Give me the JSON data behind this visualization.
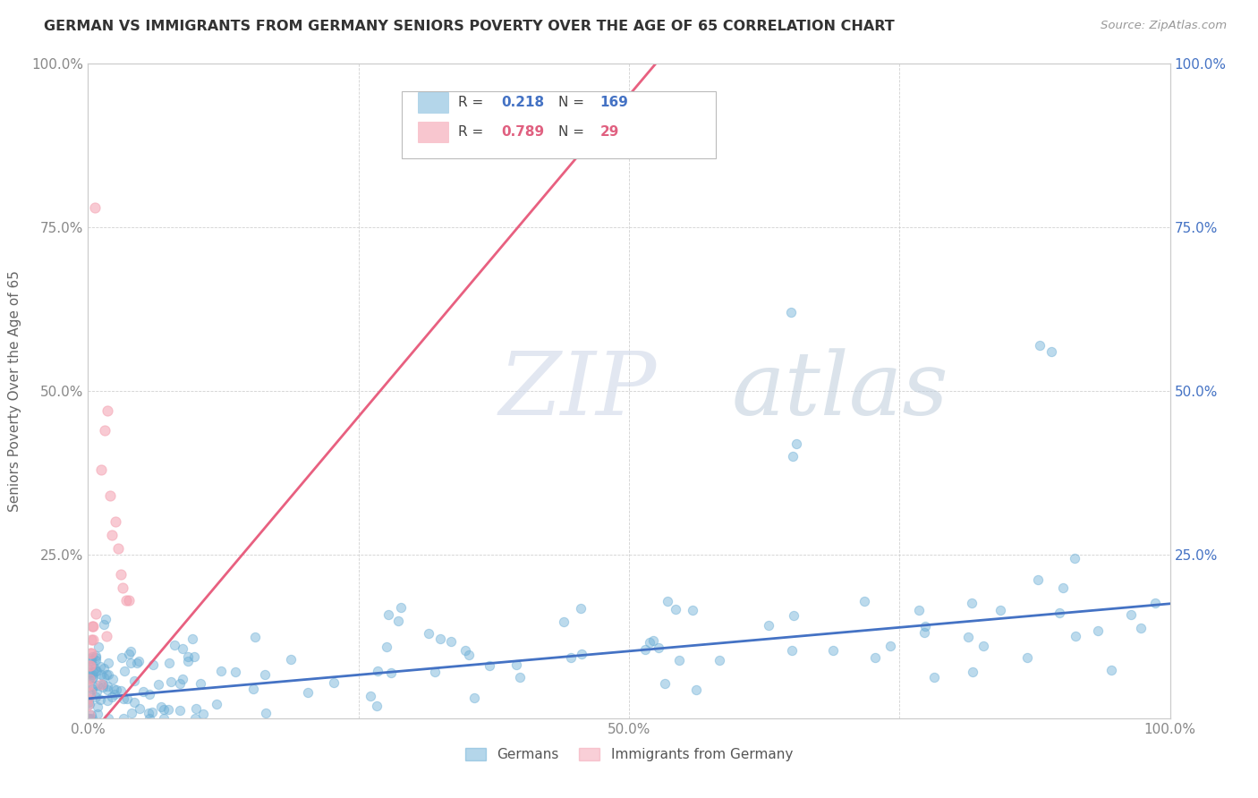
{
  "title": "GERMAN VS IMMIGRANTS FROM GERMANY SENIORS POVERTY OVER THE AGE OF 65 CORRELATION CHART",
  "source": "Source: ZipAtlas.com",
  "ylabel": "Seniors Poverty Over the Age of 65",
  "xlim": [
    0.0,
    1.0
  ],
  "ylim": [
    0.0,
    1.0
  ],
  "xticks": [
    0.0,
    0.25,
    0.5,
    0.75,
    1.0
  ],
  "xticklabels": [
    "0.0%",
    "",
    "50.0%",
    "",
    "100.0%"
  ],
  "yticks": [
    0.0,
    0.25,
    0.5,
    0.75,
    1.0
  ],
  "yticklabels": [
    "",
    "25.0%",
    "50.0%",
    "75.0%",
    "100.0%"
  ],
  "right_yticklabels": [
    "",
    "25.0%",
    "50.0%",
    "75.0%",
    "100.0%"
  ],
  "german_color": "#6baed6",
  "immigrant_color": "#f4a0b0",
  "german_line_color": "#4472c4",
  "immigrant_line_color": "#e86080",
  "german_R": 0.218,
  "german_N": 169,
  "immigrant_R": 0.789,
  "immigrant_N": 29,
  "watermark_zip": "ZIP",
  "watermark_atlas": "atlas",
  "legend_labels": [
    "Germans",
    "Immigrants from Germany"
  ],
  "background_color": "#ffffff",
  "grid_color": "#cccccc",
  "title_color": "#333333",
  "source_color": "#999999",
  "label_color": "#666666",
  "tick_color": "#888888",
  "right_tick_color": "#4472c4"
}
